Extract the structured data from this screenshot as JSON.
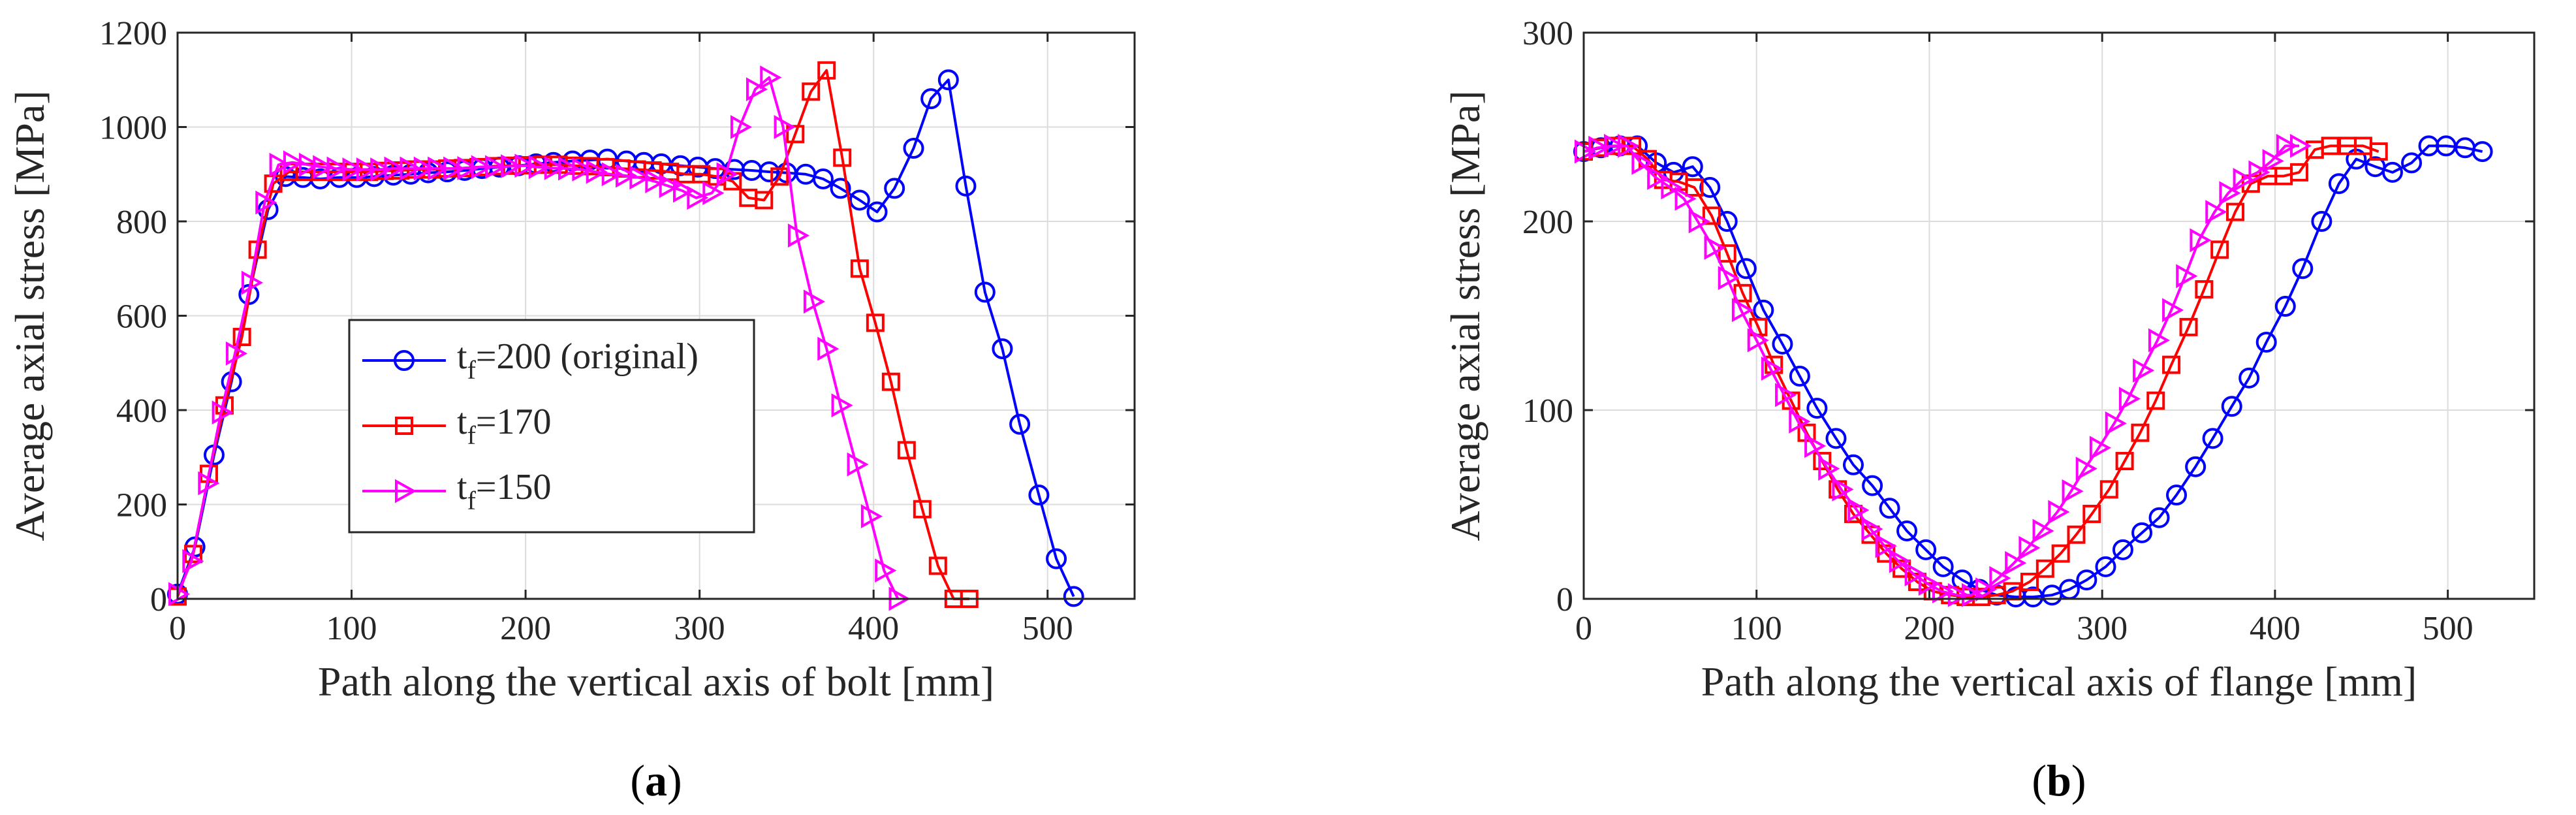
{
  "colors": {
    "blue": "#0000ff",
    "red": "#ff0000",
    "magenta": "#ff00ff"
  },
  "chart_data": [
    {
      "type": "line",
      "caption_letter": "a",
      "xlabel": "Path along the vertical axis of bolt [mm]",
      "ylabel": "Average axial stress [MPa]",
      "xlim": [
        0,
        550
      ],
      "ylim": [
        0,
        1200
      ],
      "xticks": [
        0,
        100,
        200,
        300,
        400,
        500
      ],
      "yticks": [
        0,
        200,
        400,
        600,
        800,
        1000,
        1200
      ],
      "grid": true,
      "legend_position": "middle-left",
      "series": [
        {
          "name": "t_f=200 (original)",
          "label_base": "t",
          "label_sub": "f",
          "label_rest": "=200 (original)",
          "color": "#0000ff",
          "marker": "circle",
          "x": [
            0,
            10,
            21,
            31,
            41,
            52,
            62,
            72,
            82,
            93,
            103,
            113,
            124,
            134,
            144,
            155,
            165,
            175,
            185,
            196,
            206,
            216,
            227,
            237,
            247,
            258,
            268,
            278,
            289,
            299,
            309,
            320,
            330,
            340,
            350,
            361,
            371,
            381,
            392,
            402,
            412,
            423,
            433,
            443,
            453,
            464,
            474,
            484,
            495,
            505,
            515
          ],
          "y": [
            10,
            110,
            305,
            460,
            645,
            825,
            895,
            893,
            890,
            893,
            893,
            895,
            898,
            900,
            903,
            905,
            908,
            912,
            915,
            918,
            922,
            925,
            928,
            930,
            932,
            928,
            925,
            922,
            918,
            915,
            912,
            910,
            908,
            905,
            903,
            900,
            890,
            870,
            845,
            820,
            870,
            955,
            1060,
            1100,
            875,
            650,
            530,
            370,
            220,
            85,
            5
          ]
        },
        {
          "name": "t_f=170",
          "label_base": "t",
          "label_sub": "f",
          "label_rest": "=170",
          "color": "#ff0000",
          "marker": "square",
          "x": [
            0,
            9,
            18,
            27,
            37,
            46,
            55,
            64,
            73,
            82,
            91,
            101,
            110,
            119,
            128,
            137,
            146,
            155,
            164,
            173,
            182,
            192,
            201,
            210,
            219,
            228,
            237,
            246,
            255,
            264,
            273,
            283,
            292,
            301,
            310,
            319,
            328,
            337,
            346,
            355,
            364,
            373,
            382,
            392,
            401,
            410,
            419,
            428,
            437,
            446,
            455
          ],
          "y": [
            5,
            95,
            265,
            410,
            555,
            740,
            880,
            905,
            905,
            905,
            905,
            905,
            905,
            907,
            908,
            910,
            910,
            912,
            913,
            915,
            917,
            918,
            919,
            920,
            920,
            918,
            917,
            915,
            912,
            910,
            908,
            905,
            900,
            900,
            895,
            885,
            850,
            845,
            895,
            985,
            1075,
            1120,
            935,
            700,
            585,
            460,
            315,
            190,
            70,
            0,
            0
          ]
        },
        {
          "name": "t_f=150",
          "label_base": "t",
          "label_sub": "f",
          "label_rest": "=150",
          "color": "#ff00ff",
          "marker": "triangle-right",
          "x": [
            0,
            8,
            17,
            25,
            33,
            42,
            50,
            58,
            66,
            75,
            83,
            91,
            100,
            108,
            116,
            124,
            133,
            141,
            149,
            158,
            166,
            174,
            182,
            191,
            199,
            207,
            216,
            224,
            232,
            240,
            249,
            257,
            265,
            274,
            282,
            290,
            298,
            307,
            315,
            323,
            332,
            340,
            348,
            356,
            365,
            373,
            381,
            390,
            398,
            406,
            414
          ],
          "y": [
            10,
            80,
            245,
            395,
            520,
            670,
            840,
            920,
            925,
            920,
            915,
            912,
            910,
            910,
            910,
            912,
            912,
            912,
            912,
            912,
            913,
            915,
            915,
            917,
            918,
            915,
            913,
            912,
            910,
            905,
            900,
            897,
            893,
            885,
            875,
            865,
            850,
            860,
            900,
            1000,
            1080,
            1105,
            1000,
            770,
            630,
            530,
            410,
            285,
            175,
            60,
            0
          ]
        }
      ]
    },
    {
      "type": "line",
      "caption_letter": "b",
      "xlabel": "Path along the vertical axis of flange [mm]",
      "ylabel": "Average axial stress [MPa]",
      "xlim": [
        0,
        550
      ],
      "ylim": [
        0,
        300
      ],
      "xticks": [
        0,
        100,
        200,
        300,
        400,
        500
      ],
      "yticks": [
        0,
        100,
        200,
        300
      ],
      "grid": true,
      "series": [
        {
          "name": "t_f=200 (original)",
          "color": "#0000ff",
          "marker": "circle",
          "x": [
            0,
            10,
            21,
            31,
            42,
            52,
            63,
            73,
            83,
            94,
            104,
            115,
            125,
            135,
            146,
            156,
            167,
            177,
            187,
            198,
            208,
            219,
            229,
            239,
            250,
            260,
            271,
            281,
            291,
            302,
            312,
            323,
            333,
            343,
            354,
            364,
            375,
            385,
            395,
            406,
            416,
            427,
            437,
            447,
            458,
            468,
            479,
            489,
            499,
            510,
            520
          ],
          "y": [
            237,
            239,
            240,
            240,
            231,
            226,
            229,
            218,
            200,
            175,
            153,
            135,
            118,
            101,
            85,
            71,
            60,
            48,
            36,
            26,
            17,
            10,
            5,
            2,
            1,
            1,
            2,
            5,
            10,
            17,
            26,
            35,
            43,
            55,
            70,
            85,
            102,
            117,
            136,
            155,
            175,
            200,
            220,
            233,
            229,
            226,
            231,
            240,
            240,
            239,
            237
          ]
        },
        {
          "name": "t_f=170",
          "color": "#ff0000",
          "marker": "square",
          "x": [
            0,
            9,
            18,
            28,
            37,
            46,
            55,
            64,
            74,
            83,
            92,
            101,
            110,
            120,
            129,
            138,
            147,
            156,
            166,
            175,
            184,
            193,
            202,
            212,
            221,
            230,
            239,
            248,
            258,
            267,
            276,
            285,
            294,
            304,
            313,
            322,
            331,
            340,
            350,
            359,
            368,
            377,
            386,
            396,
            405,
            414,
            423,
            432,
            442,
            451,
            460
          ],
          "y": [
            237,
            239,
            240,
            240,
            233,
            222,
            221,
            218,
            203,
            183,
            162,
            144,
            124,
            105,
            88,
            73,
            58,
            45,
            34,
            24,
            16,
            9,
            4,
            2,
            1,
            1,
            2,
            4,
            9,
            16,
            24,
            34,
            45,
            58,
            73,
            88,
            105,
            124,
            144,
            164,
            185,
            205,
            220,
            224,
            224,
            226,
            238,
            240,
            240,
            240,
            237
          ]
        },
        {
          "name": "t_f=150",
          "color": "#ff00ff",
          "marker": "triangle-right",
          "x": [
            0,
            8,
            17,
            25,
            33,
            42,
            50,
            58,
            66,
            75,
            83,
            91,
            100,
            108,
            116,
            124,
            133,
            141,
            149,
            158,
            166,
            174,
            182,
            191,
            199,
            207,
            216,
            224,
            232,
            240,
            249,
            257,
            265,
            274,
            282,
            290,
            298,
            307,
            315,
            323,
            332,
            340,
            348,
            356,
            365,
            373,
            381,
            390,
            398,
            406,
            414
          ],
          "y": [
            237,
            239,
            240,
            240,
            231,
            223,
            218,
            212,
            200,
            186,
            170,
            153,
            137,
            122,
            108,
            94,
            81,
            69,
            58,
            47,
            37,
            28,
            20,
            13,
            8,
            4,
            2,
            2,
            5,
            11,
            19,
            27,
            36,
            46,
            57,
            69,
            80,
            93,
            106,
            121,
            137,
            153,
            171,
            190,
            205,
            215,
            222,
            226,
            232,
            240,
            240
          ]
        }
      ]
    }
  ]
}
